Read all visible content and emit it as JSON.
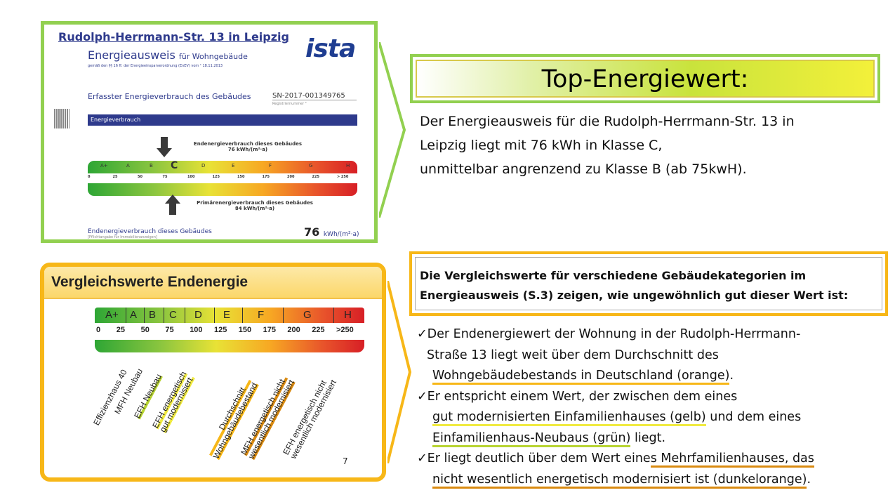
{
  "certificate": {
    "address": "Rudolph-Herrmann-Str. 13 in Leipzig",
    "logo": "ista",
    "title": "Energieausweis",
    "title_suffix": "für Wohngebäude",
    "law_note": "gemäß den §§ 16 ff. der Energieeinsparverordnung (EnEV) vom ¹ 18.11.2013",
    "section_heading": "Erfasster Energieverbrauch des Gebäudes",
    "registration_number": "SN-2017-001349765",
    "registration_label": "Registriernummer ²",
    "bar_heading": "Energieverbrauch",
    "end_energy_label": "Endenergieverbrauch dieses Gebäudes",
    "end_energy_value": "76 kWh/(m²·a)",
    "primary_energy_label": "Primärenergieverbrauch dieses Gebäudes",
    "primary_energy_value": "84 kWh/(m²·a)",
    "classes": [
      "A+",
      "A",
      "B",
      "C",
      "D",
      "E",
      "F",
      "G",
      "H"
    ],
    "ticks": [
      "0",
      "25",
      "50",
      "75",
      "100",
      "125",
      "150",
      "175",
      "200",
      "225",
      "> 250"
    ],
    "footer_label": "Endenergieverbrauch dieses Gebäudes",
    "footer_note": "[Pflichtangabe für Immobilienanzeigen]",
    "footer_value": "76",
    "footer_unit": "kWh/(m²·a)"
  },
  "heading": {
    "title": "Top-Energiewert:",
    "description_lines": [
      "Der Energieausweis für die Rudolph-Herrmann-Str. 13 in",
      "Leipzig liegt mit 76 kWh in Klasse C,",
      "unmittelbar angrenzend zu Klasse B (ab 75kwH)."
    ]
  },
  "comparison": {
    "title": "Vergleichswerte Endenergie",
    "classes": [
      "A+",
      "A",
      "B",
      "C",
      "D",
      "E",
      "F",
      "G",
      "H"
    ],
    "ticks": [
      "0",
      "25",
      "50",
      "75",
      "100",
      "125",
      "150",
      "175",
      "200",
      "225",
      ">250"
    ],
    "labels": [
      {
        "lines": [
          "Effizienzhaus 40"
        ]
      },
      {
        "lines": [
          "MFH Neubau"
        ]
      },
      {
        "lines": [
          "EFH Neubau"
        ]
      },
      {
        "lines": [
          "EFH energetisch",
          "gut modernisiert"
        ]
      },
      {
        "lines": [
          "Durchschnitt",
          "Wohngebäudebestand"
        ]
      },
      {
        "lines": [
          "MFH energetisch nicht",
          "wesentlich modernisiert"
        ]
      },
      {
        "lines": [
          "EFH energetisch nicht",
          "wesentlich modernisiert"
        ]
      }
    ],
    "page_number": "7"
  },
  "summary": {
    "intro": "Die Vergleichswerte für verschiedene Gebäudekategorien im Energieausweis (S.3) zeigen, wie ungewöhnlich gut dieser Wert ist:",
    "b1_l1": "✓Der Endenergiewert der Wohnung in der Rudolph-Herrmann-",
    "b1_l2": "Straße 13 liegt weit über dem Durchschnitt des",
    "b1_l3": "Wohngebäudebestands in Deutschland (orange)",
    "b1_l3_end": ".",
    "b2_l1": "✓Er entspricht einem Wert, der zwischen dem eines",
    "b2_l2": "gut modernisierten Einfamilienhauses (gelb)",
    "b2_l2_end": " und dem eines",
    "b2_l3": "Einfamilienhaus-Neubaus (grün)",
    "b2_l3_end": " liegt.",
    "b3_l1a": "✓Er liegt deutlich über dem Wert eine",
    "b3_l1b": "s Mehrfamilienhauses, das",
    "b3_l2": "nicht wesentlich energetisch modernisiert ist (dunkelorange)",
    "b3_l2_end": "."
  },
  "colors": {
    "green": "#92d050",
    "orange": "#f7b718",
    "dark_orange": "#d98a10",
    "yellow": "#f0ea40",
    "navy": "#2e3a8c"
  }
}
